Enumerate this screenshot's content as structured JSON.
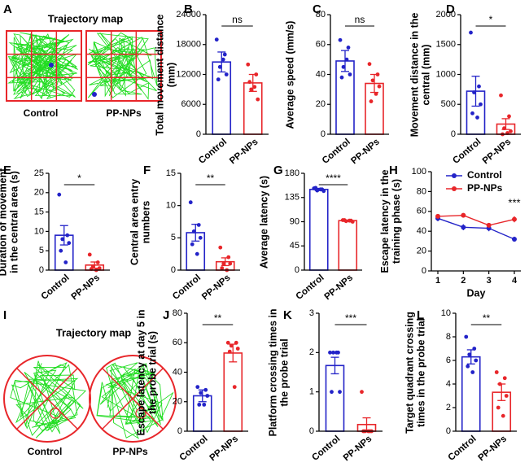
{
  "trajectory_maps": [
    {
      "panel": "A",
      "title": "Trajectory map",
      "labels": [
        "Control",
        "PP-NPs"
      ]
    },
    {
      "panel": "I",
      "title": "Trajectory map",
      "labels": [
        "Control",
        "PP-NPs"
      ]
    }
  ],
  "chart_data": [
    {
      "type": "bar",
      "panel": "B",
      "ylabel": "Total movement distance (mm)",
      "categories": [
        "Control",
        "PP-NPs"
      ],
      "values": [
        14500,
        10300
      ],
      "errors": [
        2000,
        1700
      ],
      "points": [
        [
          19000,
          16000,
          13500,
          12000,
          11000,
          15000
        ],
        [
          14000,
          12000,
          9000,
          7000,
          10500,
          9500
        ]
      ],
      "colors": [
        "#2323c8",
        "#e8262a"
      ],
      "ylim": [
        0,
        24000
      ],
      "yticks": [
        0,
        6000,
        12000,
        18000,
        24000
      ],
      "significance": "ns"
    },
    {
      "type": "bar",
      "panel": "C",
      "ylabel": "Average speed (mm/s)",
      "categories": [
        "Control",
        "PP-NPs"
      ],
      "values": [
        49,
        34
      ],
      "errors": [
        7,
        6
      ],
      "points": [
        [
          63,
          58,
          45,
          40,
          38,
          50
        ],
        [
          47,
          40,
          36,
          32,
          22,
          27
        ]
      ],
      "colors": [
        "#2323c8",
        "#e8262a"
      ],
      "ylim": [
        0,
        80
      ],
      "yticks": [
        0,
        20,
        40,
        60,
        80
      ],
      "significance": "ns"
    },
    {
      "type": "bar",
      "panel": "D",
      "ylabel": "Movement distance in the central (mm)",
      "categories": [
        "Control",
        "PP-NPs"
      ],
      "values": [
        720,
        170
      ],
      "errors": [
        250,
        90
      ],
      "points": [
        [
          1700,
          800,
          700,
          500,
          350,
          280
        ],
        [
          650,
          300,
          100,
          50,
          0,
          20
        ]
      ],
      "colors": [
        "#2323c8",
        "#e8262a"
      ],
      "ylim": [
        0,
        2000
      ],
      "yticks": [
        0,
        500,
        1000,
        1500,
        2000
      ],
      "significance": "*"
    },
    {
      "type": "bar",
      "panel": "E",
      "ylabel": "Duration of movement in the central area (s)",
      "categories": [
        "Control",
        "PP-NPs"
      ],
      "values": [
        9,
        1.3
      ],
      "errors": [
        2.5,
        0.8
      ],
      "points": [
        [
          19.5,
          9,
          8,
          7,
          5,
          2
        ],
        [
          4,
          2,
          1,
          0.5,
          0.3,
          0
        ]
      ],
      "colors": [
        "#2323c8",
        "#e8262a"
      ],
      "ylim": [
        0,
        25
      ],
      "yticks": [
        0,
        5,
        10,
        15,
        20,
        25
      ],
      "significance": "*"
    },
    {
      "type": "bar",
      "panel": "F",
      "ylabel": "Central area entry numbers",
      "categories": [
        "Control",
        "PP-NPs"
      ],
      "values": [
        5.8,
        1.3
      ],
      "errors": [
        1.3,
        0.6
      ],
      "points": [
        [
          10.5,
          7,
          6,
          5,
          4,
          2.5
        ],
        [
          3.5,
          2,
          1,
          1,
          0.3,
          0
        ]
      ],
      "colors": [
        "#2323c8",
        "#e8262a"
      ],
      "ylim": [
        0,
        15
      ],
      "yticks": [
        0,
        5,
        10,
        15
      ],
      "significance": "**"
    },
    {
      "type": "bar",
      "panel": "G",
      "ylabel": "Average latency (s)",
      "categories": [
        "Control",
        "PP-NPs"
      ],
      "values": [
        150,
        92
      ],
      "errors": [
        2,
        1
      ],
      "points": [
        [
          152,
          150,
          148,
          147,
          153,
          150
        ],
        [
          93,
          92,
          91,
          90,
          93,
          92
        ]
      ],
      "colors": [
        "#2323c8",
        "#e8262a"
      ],
      "ylim": [
        0,
        180
      ],
      "yticks": [
        0,
        45,
        90,
        135,
        180
      ],
      "significance": "****"
    },
    {
      "type": "line",
      "panel": "H",
      "ylabel": "Escape latency in the training phase (s)",
      "xlabel": "Day",
      "x": [
        1,
        2,
        3,
        4
      ],
      "xlim": [
        1,
        4
      ],
      "xticks": [
        1,
        2,
        3,
        4
      ],
      "ylim": [
        0,
        100
      ],
      "yticks": [
        0,
        20,
        40,
        60,
        80,
        100
      ],
      "legend": "upper right",
      "annotation": "***",
      "series": [
        {
          "name": "Control",
          "color": "#2323c8",
          "values": [
            53,
            44,
            43,
            32
          ],
          "errors": [
            3,
            3,
            3,
            2.5
          ]
        },
        {
          "name": "PP-NPs",
          "color": "#e8262a",
          "values": [
            55,
            56,
            46,
            52
          ],
          "errors": [
            2,
            2,
            2,
            3
          ]
        }
      ]
    },
    {
      "type": "bar",
      "panel": "J",
      "ylabel": "Escape latency at day 5 in the probe trial (s)",
      "categories": [
        "Control",
        "PP-NPs"
      ],
      "values": [
        24,
        53
      ],
      "errors": [
        4,
        6
      ],
      "points": [
        [
          30,
          28,
          26,
          24,
          18,
          18
        ],
        [
          60,
          60,
          58,
          56,
          54,
          30
        ]
      ],
      "colors": [
        "#2323c8",
        "#e8262a"
      ],
      "ylim": [
        0,
        80
      ],
      "yticks": [
        0,
        20,
        40,
        60,
        80
      ],
      "significance": "**"
    },
    {
      "type": "bar",
      "panel": "K",
      "ylabel": "Platform crossing times in the probe trial",
      "categories": [
        "Control",
        "PP-NPs"
      ],
      "values": [
        1.67,
        0.17
      ],
      "errors": [
        0.21,
        0.17
      ],
      "points": [
        [
          2,
          2,
          2,
          1,
          1,
          2
        ],
        [
          1,
          0,
          0,
          0,
          0,
          0
        ]
      ],
      "colors": [
        "#2323c8",
        "#e8262a"
      ],
      "ylim": [
        0,
        3
      ],
      "yticks": [
        0,
        1,
        2,
        3
      ],
      "significance": "***"
    },
    {
      "type": "bar",
      "panel": "L",
      "ylabel": "Target quadrant crossing times in the probe trial",
      "categories": [
        "Control",
        "PP-NPs"
      ],
      "values": [
        6.3,
        3.3
      ],
      "errors": [
        0.6,
        0.7
      ],
      "points": [
        [
          8,
          7,
          6.5,
          6,
          5.5,
          5
        ],
        [
          5,
          4.5,
          4,
          3,
          2,
          1.3
        ]
      ],
      "colors": [
        "#2323c8",
        "#e8262a"
      ],
      "ylim": [
        0,
        10
      ],
      "yticks": [
        0,
        2,
        4,
        6,
        8,
        10
      ],
      "significance": "**"
    }
  ]
}
